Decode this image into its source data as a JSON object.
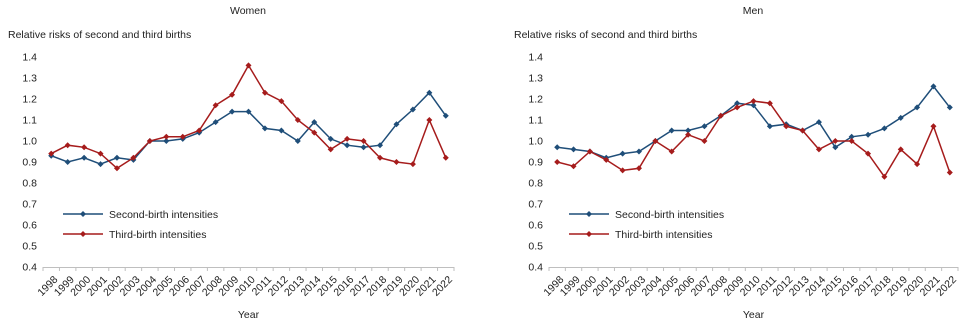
{
  "chart_data": [
    {
      "type": "line",
      "title": "Women",
      "ylabel": "Relative risks of second and third births",
      "xlabel": "Year",
      "ylim": [
        0.4,
        1.4
      ],
      "yticks": [
        "0.4",
        "0.5",
        "0.6",
        "0.7",
        "0.8",
        "0.9",
        "1.0",
        "1.1",
        "1.2",
        "1.3",
        "1.4"
      ],
      "x": [
        "1998",
        "1999",
        "2000",
        "2001",
        "2002",
        "2003",
        "2004",
        "2005",
        "2006",
        "2007",
        "2008",
        "2009",
        "2010",
        "2011",
        "2012",
        "2013",
        "2014",
        "2015",
        "2016",
        "2017",
        "2018",
        "2019",
        "2020",
        "2021",
        "2022"
      ],
      "grid": false,
      "legend_position": "lower-left",
      "series": [
        {
          "name": "Second-birth intensities",
          "color": "#1f4e79",
          "values": [
            0.93,
            0.9,
            0.92,
            0.89,
            0.92,
            0.91,
            1.0,
            1.0,
            1.01,
            1.04,
            1.09,
            1.14,
            1.14,
            1.06,
            1.05,
            1.0,
            1.09,
            1.01,
            0.98,
            0.97,
            0.98,
            1.08,
            1.15,
            1.23,
            1.12
          ]
        },
        {
          "name": "Third-birth intensities",
          "color": "#a61c1c",
          "values": [
            0.94,
            0.98,
            0.97,
            0.94,
            0.87,
            0.92,
            1.0,
            1.02,
            1.02,
            1.05,
            1.17,
            1.22,
            1.36,
            1.23,
            1.19,
            1.1,
            1.04,
            0.96,
            1.01,
            1.0,
            0.92,
            0.9,
            0.89,
            1.1,
            0.92
          ]
        }
      ]
    },
    {
      "type": "line",
      "title": "Men",
      "ylabel": "Relative risks of second and third births",
      "xlabel": "Year",
      "ylim": [
        0.4,
        1.4
      ],
      "yticks": [
        "0.4",
        "0.5",
        "0.6",
        "0.7",
        "0.8",
        "0.9",
        "1.0",
        "1.1",
        "1.2",
        "1.3",
        "1.4"
      ],
      "x": [
        "1998",
        "1999",
        "2000",
        "2001",
        "2002",
        "2003",
        "2004",
        "2005",
        "2006",
        "2007",
        "2008",
        "2009",
        "2010",
        "2011",
        "2012",
        "2013",
        "2014",
        "2015",
        "2016",
        "2017",
        "2018",
        "2019",
        "2020",
        "2021",
        "2022"
      ],
      "grid": false,
      "legend_position": "lower-left",
      "series": [
        {
          "name": "Second-birth intensities",
          "color": "#1f4e79",
          "values": [
            0.97,
            0.96,
            0.95,
            0.92,
            0.94,
            0.95,
            1.0,
            1.05,
            1.05,
            1.07,
            1.12,
            1.18,
            1.17,
            1.07,
            1.08,
            1.05,
            1.09,
            0.97,
            1.02,
            1.03,
            1.06,
            1.11,
            1.16,
            1.26,
            1.16
          ]
        },
        {
          "name": "Third-birth intensities",
          "color": "#a61c1c",
          "values": [
            0.9,
            0.88,
            0.95,
            0.91,
            0.86,
            0.87,
            1.0,
            0.95,
            1.03,
            1.0,
            1.12,
            1.16,
            1.19,
            1.18,
            1.07,
            1.05,
            0.96,
            1.0,
            1.0,
            0.94,
            0.83,
            0.96,
            0.89,
            1.07,
            0.85
          ]
        }
      ]
    }
  ]
}
